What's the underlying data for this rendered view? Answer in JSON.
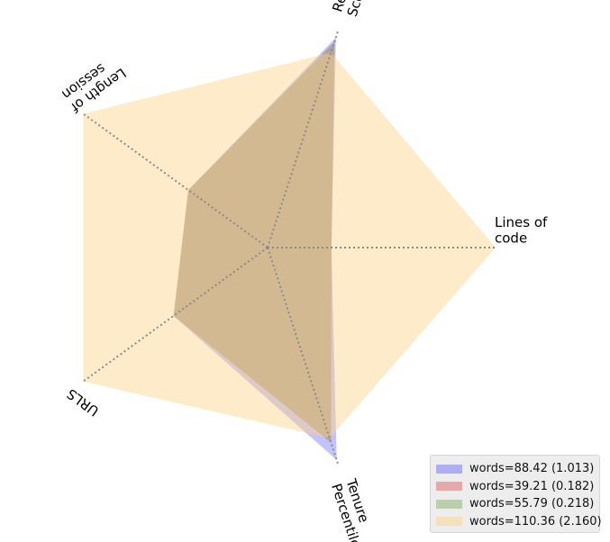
{
  "chart_data": {
    "type": "radar",
    "axes": [
      "Lines of\ncode",
      "Readability\nScore",
      "Length of\nsession",
      "URLS",
      "Tenure\nPercentile"
    ],
    "range": [
      0,
      1
    ],
    "grid": false,
    "legend_position": "bottom-right",
    "series": [
      {
        "name": "words=88.42 (1.013)",
        "color": "#6f6ff5",
        "values": [
          0.28,
          0.97,
          0.43,
          0.51,
          0.98
        ]
      },
      {
        "name": "words=39.21 (0.182)",
        "color": "#e06666",
        "values": [
          0.28,
          0.95,
          0.43,
          0.51,
          0.9
        ]
      },
      {
        "name": "words=55.79 (0.218)",
        "color": "#86b36a",
        "values": [
          0.28,
          0.95,
          0.43,
          0.51,
          0.9
        ]
      },
      {
        "name": "words=110.36 (2.160)",
        "color": "#fdd38a",
        "values": [
          1.0,
          0.9,
          1.0,
          1.0,
          0.88
        ]
      }
    ]
  }
}
